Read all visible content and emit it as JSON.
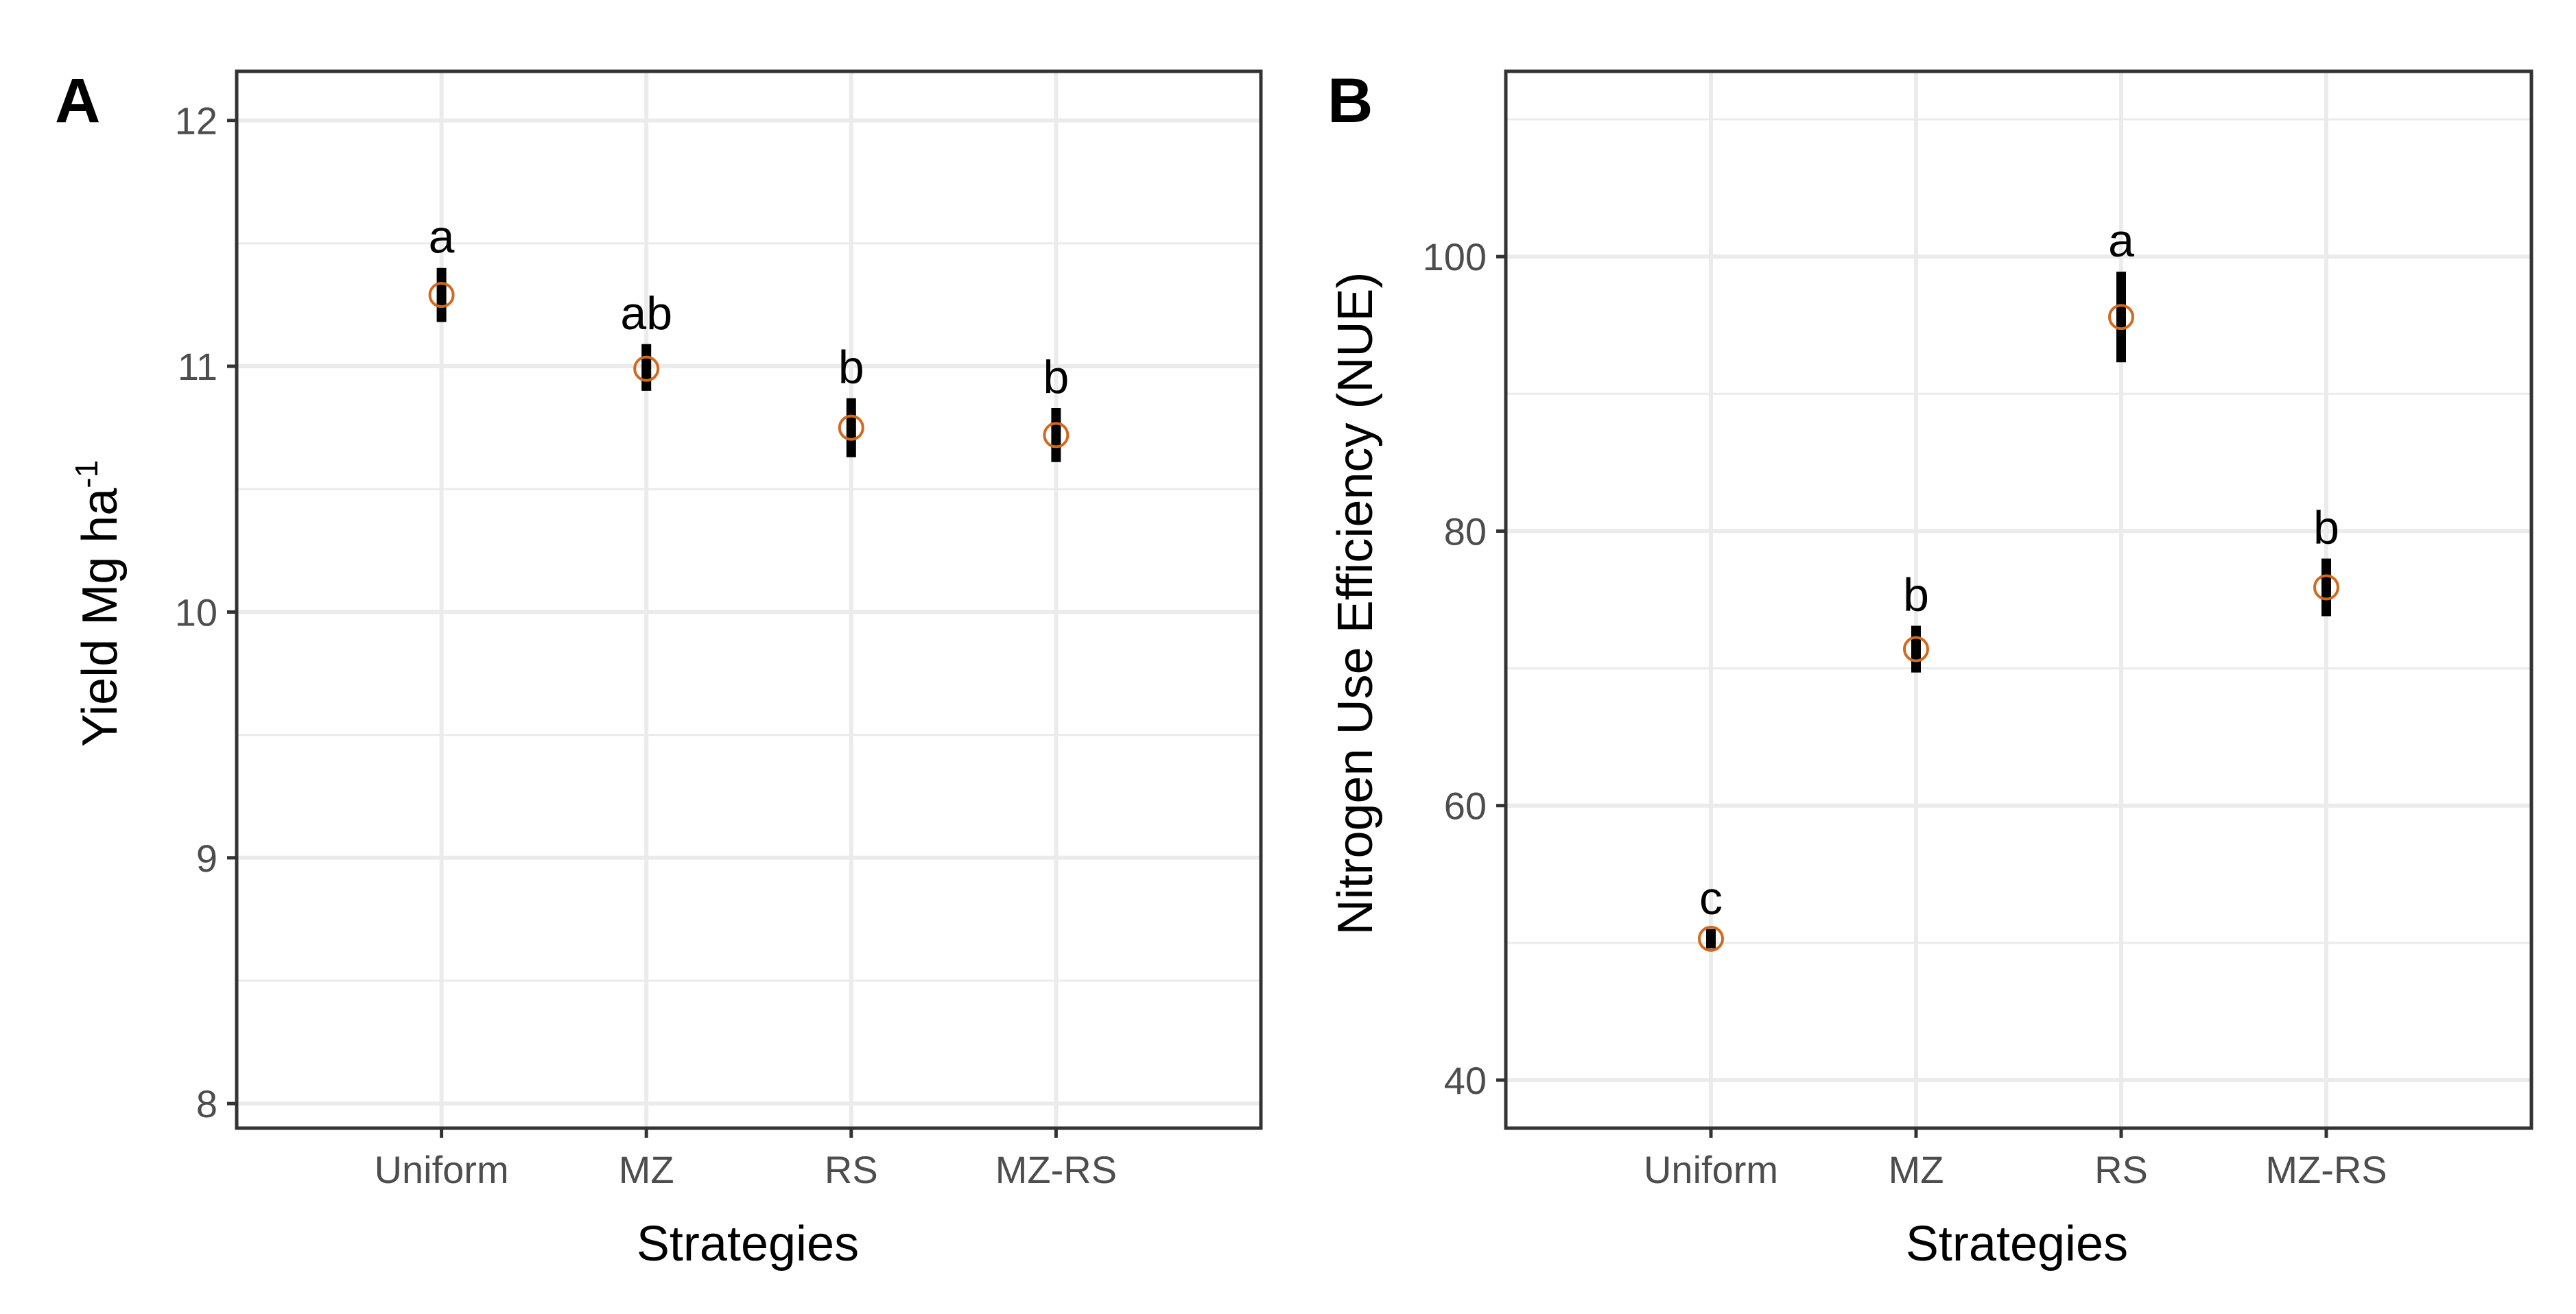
{
  "chart_data": [
    {
      "type": "scatter",
      "panel": "A",
      "xlabel": "Strategies",
      "ylabel": "Yield Mg ha",
      "ylabel_sup": "-1",
      "ylim": [
        7.9,
        12.2
      ],
      "yticks": [
        8,
        9,
        10,
        11,
        12
      ],
      "y_tick_labels": [
        "8",
        "9",
        "10",
        "11",
        "12"
      ],
      "categories": [
        "Uniform",
        "MZ",
        "RS",
        "MZ-RS"
      ],
      "series": [
        {
          "name": "Yield",
          "values": [
            11.29,
            10.99,
            10.75,
            10.72
          ],
          "lower": [
            11.18,
            10.9,
            10.63,
            10.61
          ],
          "upper": [
            11.4,
            11.09,
            10.87,
            10.83
          ],
          "letters": [
            "a",
            "ab",
            "b",
            "b"
          ]
        }
      ],
      "grid": true
    },
    {
      "type": "scatter",
      "panel": "B",
      "xlabel": "Strategies",
      "ylabel": "Nitrogen Use Efficiency (NUE)",
      "ylim": [
        36.5,
        113.5
      ],
      "yticks": [
        40,
        60,
        80,
        100
      ],
      "y_tick_labels": [
        "40",
        "60",
        "80",
        "100"
      ],
      "categories": [
        "Uniform",
        "MZ",
        "RS",
        "MZ-RS"
      ],
      "series": [
        {
          "name": "NUE",
          "values": [
            50.3,
            71.4,
            95.6,
            75.9
          ],
          "lower": [
            49.6,
            69.7,
            92.3,
            73.8
          ],
          "upper": [
            51.0,
            73.1,
            98.9,
            78.0
          ],
          "letters": [
            "c",
            "b",
            "a",
            "b"
          ]
        }
      ],
      "grid": true
    }
  ],
  "style": {
    "point_color": "#d2691e",
    "errorbar_color": "#000000",
    "grid_color": "#ebebeb",
    "panel_border_color": "#333333",
    "tick_label_color": "#4d4d4d"
  }
}
